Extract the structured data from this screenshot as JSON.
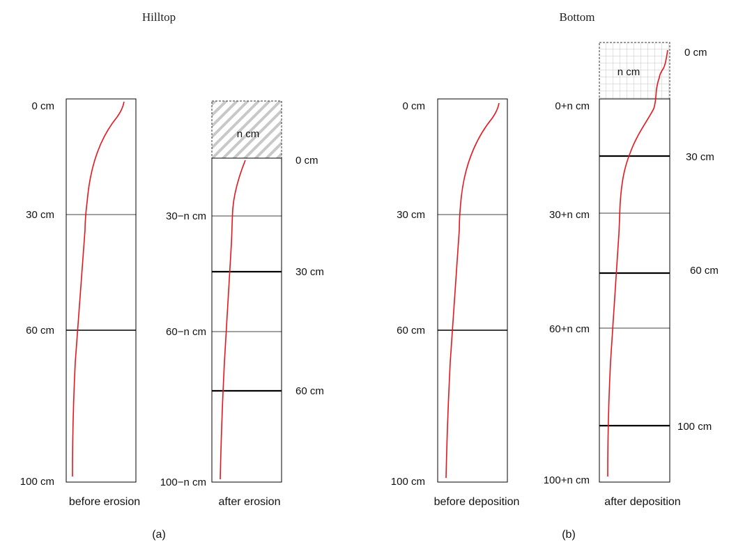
{
  "headers": {
    "hilltop": "Hilltop",
    "bottom": "Bottom"
  },
  "captions": {
    "a": "(a)",
    "b": "(b)"
  },
  "columns": {
    "before_erosion": {
      "label": "before erosion",
      "depths": [
        "0 cm",
        "30 cm",
        "60 cm",
        "100 cm"
      ]
    },
    "after_erosion": {
      "label": "after erosion",
      "removed_layer": "n cm",
      "left_depths": [
        "30−n cm",
        "60−n cm",
        "100−n cm"
      ],
      "right_depths": [
        "0 cm",
        "30 cm",
        "60 cm"
      ]
    },
    "before_deposition": {
      "label": "before deposition",
      "depths": [
        "0 cm",
        "30 cm",
        "60 cm",
        "100 cm"
      ]
    },
    "after_deposition": {
      "label": "after deposition",
      "added_layer": "n cm",
      "left_depths": [
        "0+n cm",
        "30+n cm",
        "60+n cm",
        "100+n cm"
      ],
      "right_depths": [
        "0 cm",
        "30 cm",
        "60 cm",
        "100 cm"
      ]
    }
  },
  "colors": {
    "profile_curve": "#e8141a",
    "hatch": "#c8c8c8",
    "grid": "#c4c4c4"
  }
}
